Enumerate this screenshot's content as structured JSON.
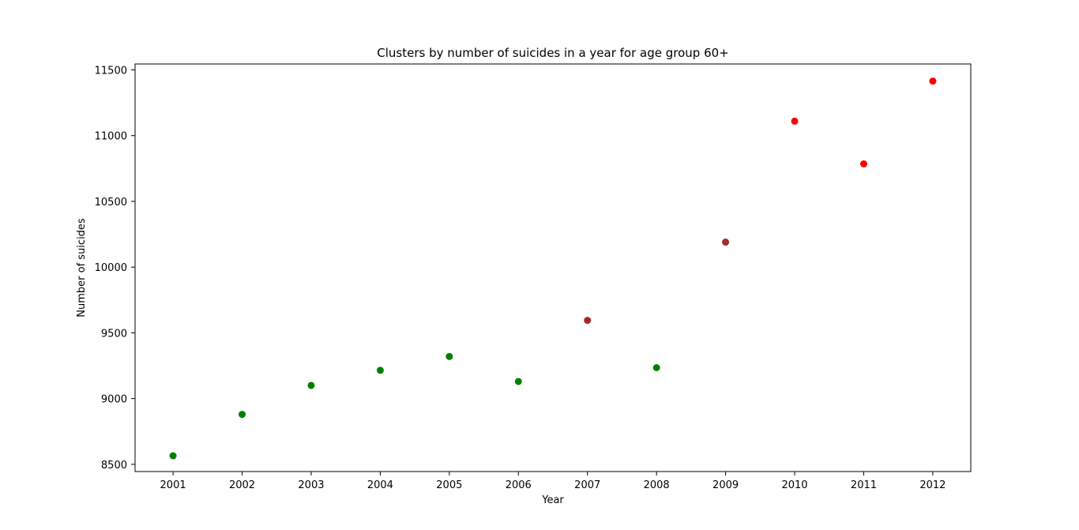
{
  "chart_data": {
    "type": "scatter",
    "title": "Clusters by number of suicides in a year for age group 60+",
    "xlabel": "Year",
    "ylabel": "Number of suicides",
    "x_ticks": [
      "2001",
      "2002",
      "2003",
      "2004",
      "2005",
      "2006",
      "2007",
      "2008",
      "2009",
      "2010",
      "2011",
      "2012"
    ],
    "y_ticks": [
      "8500",
      "9000",
      "9500",
      "10000",
      "10500",
      "11000",
      "11500"
    ],
    "xlim": [
      2000.45,
      2012.55
    ],
    "ylim": [
      8445,
      11545
    ],
    "grid": false,
    "legend": "none",
    "colors": {
      "green": "#008000",
      "brown": "#a52a2a",
      "red": "#ff0000"
    },
    "points": [
      {
        "x": 2001,
        "y": 8565,
        "color": "green"
      },
      {
        "x": 2002,
        "y": 8880,
        "color": "green"
      },
      {
        "x": 2003,
        "y": 9100,
        "color": "green"
      },
      {
        "x": 2004,
        "y": 9215,
        "color": "green"
      },
      {
        "x": 2005,
        "y": 9320,
        "color": "green"
      },
      {
        "x": 2006,
        "y": 9130,
        "color": "green"
      },
      {
        "x": 2007,
        "y": 9595,
        "color": "brown"
      },
      {
        "x": 2008,
        "y": 9235,
        "color": "green"
      },
      {
        "x": 2009,
        "y": 10190,
        "color": "brown"
      },
      {
        "x": 2010,
        "y": 11110,
        "color": "red"
      },
      {
        "x": 2011,
        "y": 10785,
        "color": "red"
      },
      {
        "x": 2012,
        "y": 11415,
        "color": "red"
      }
    ]
  }
}
